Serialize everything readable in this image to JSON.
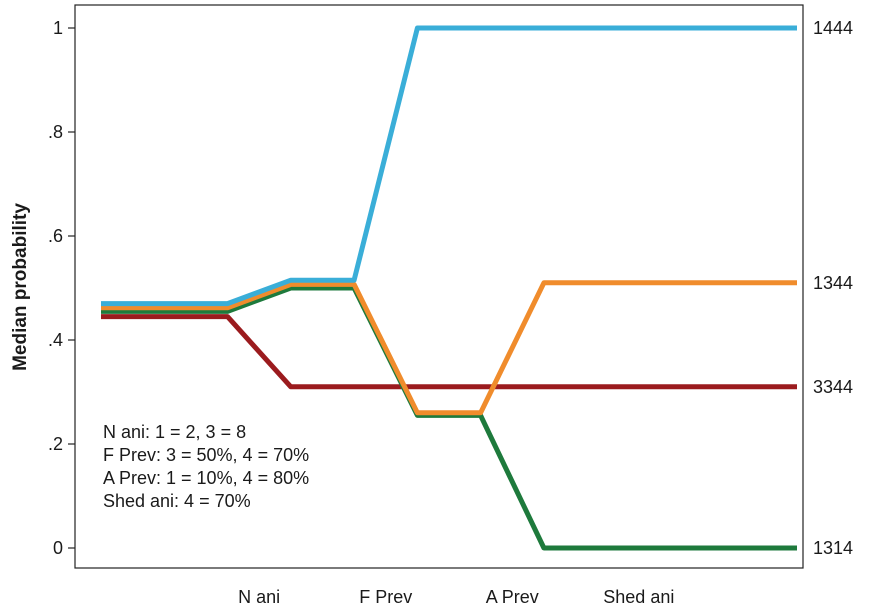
{
  "chart_data": {
    "type": "line",
    "title": "",
    "xlabel": "",
    "ylabel": "Median probability",
    "ylim": [
      -0.04,
      1.04
    ],
    "grid": false,
    "legend": "none",
    "x": [
      0,
      1,
      2,
      3,
      4,
      5,
      6,
      7,
      8,
      9,
      10,
      11
    ],
    "x_tick_labels": [
      {
        "x": 2.5,
        "label": "N ani"
      },
      {
        "x": 4.5,
        "label": "F Prev"
      },
      {
        "x": 6.5,
        "label": "A Prev"
      },
      {
        "x": 8.5,
        "label": "Shed ani"
      }
    ],
    "y_ticks": [
      {
        "value": 0,
        "label": "0"
      },
      {
        "value": 0.2,
        "label": ".2"
      },
      {
        "value": 0.4,
        "label": ".4"
      },
      {
        "value": 0.6,
        "label": ".6"
      },
      {
        "value": 0.8,
        "label": ".8"
      },
      {
        "value": 1,
        "label": "1"
      }
    ],
    "series": [
      {
        "end_label": "3344",
        "color": "#9b1b1e",
        "values": [
          0.445,
          0.445,
          0.445,
          0.31,
          0.31,
          0.31,
          0.31,
          0.31,
          0.31,
          0.31,
          0.31,
          0.31
        ]
      },
      {
        "end_label": "1314",
        "color": "#1e7a3c",
        "values": [
          0.455,
          0.455,
          0.455,
          0.5,
          0.5,
          0.255,
          0.255,
          0.0,
          0.0,
          0.0,
          0.0,
          0.0
        ]
      },
      {
        "end_label": "1344",
        "color": "#f08c2c",
        "values": [
          0.462,
          0.462,
          0.462,
          0.507,
          0.507,
          0.26,
          0.26,
          0.51,
          0.51,
          0.51,
          0.51,
          0.51
        ]
      },
      {
        "end_label": "1444",
        "color": "#3aaed8",
        "values": [
          0.47,
          0.47,
          0.47,
          0.515,
          0.515,
          1.0,
          1.0,
          1.0,
          1.0,
          1.0,
          1.0,
          1.0
        ]
      }
    ],
    "annotations": [
      "N ani: 1 = 2, 3 = 8",
      "F Prev: 3 = 50%, 4 = 70%",
      "A Prev: 1 = 10%, 4 = 80%",
      "Shed ani: 4 = 70%"
    ]
  }
}
